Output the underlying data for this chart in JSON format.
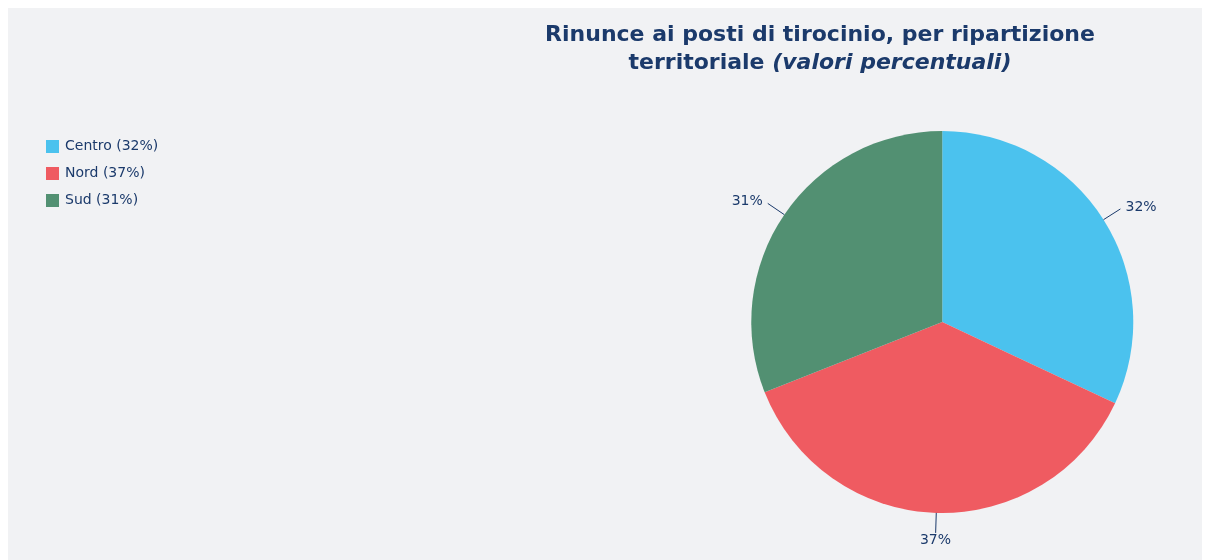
{
  "chart_data": {
    "type": "pie",
    "title": "Rinunce ai posti di tirocinio, per ripartizione territoriale",
    "subtitle": "(valori percentuali)",
    "categories": [
      "Centro (32%)",
      "Nord (37%)",
      "Sud (31%)"
    ],
    "values": [
      32,
      37,
      31
    ],
    "colors": [
      "#4bc2ee",
      "#ef5b61",
      "#529072"
    ],
    "value_labels": [
      "32%",
      "37%",
      "31%"
    ],
    "legend": "top left"
  }
}
